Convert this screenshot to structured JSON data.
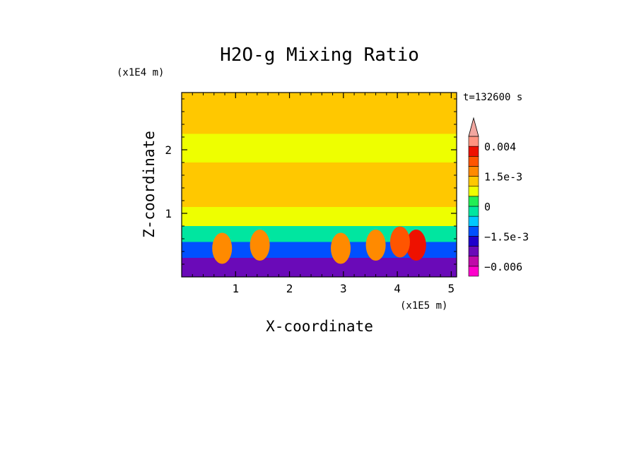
{
  "chart_data": {
    "type": "heatmap",
    "title": "H2O-g Mixing Ratio",
    "xlabel": "X-coordinate",
    "ylabel": "Z-coordinate",
    "x_unit": "(x1E5 m)",
    "y_unit": "(x1E4 m)",
    "time_label": "t=132600 s",
    "xlim": [
      0,
      5.1
    ],
    "ylim": [
      0,
      2.9
    ],
    "x_ticks": [
      1,
      2,
      3,
      4,
      5
    ],
    "y_ticks": [
      1,
      2
    ],
    "x_tick_labels": [
      "1",
      "2",
      "3",
      "4",
      "5"
    ],
    "y_tick_labels": [
      "1",
      "2"
    ],
    "colorbar": {
      "levels": [
        -0.009,
        -0.006,
        -0.003,
        -0.002,
        -0.0015,
        -0.001,
        -0.0005,
        0,
        0.0005,
        0.001,
        0.0015,
        0.002,
        0.003,
        0.004
      ],
      "colors": [
        "#ff00cc",
        "#c00aa8",
        "#6a0ab8",
        "#1e00cc",
        "#0050ff",
        "#00c8ff",
        "#00e6a0",
        "#22ee55",
        "#eeff00",
        "#ffc800",
        "#ff8a00",
        "#ff5500",
        "#ee1100",
        "#ff9480",
        "#f2a7a0"
      ],
      "labels": [
        {
          "value": 0.004,
          "text": "0.004"
        },
        {
          "value": 0.0015,
          "text": "1.5e-3"
        },
        {
          "value": 0,
          "text": "0"
        },
        {
          "value": -0.0015,
          "text": "−1.5e-3"
        },
        {
          "value": -0.006,
          "text": "−0.006"
        }
      ]
    },
    "bands": [
      {
        "z": [
          2.25,
          2.9
        ],
        "value": 0.0006
      },
      {
        "z": [
          2.05,
          2.25
        ],
        "value": 0.0003
      },
      {
        "z": [
          1.8,
          2.05
        ],
        "value": 0.0002
      },
      {
        "z": [
          1.1,
          1.8
        ],
        "value": 0.0007
      },
      {
        "z": [
          0.8,
          1.1
        ],
        "value": 0.0004
      },
      {
        "z": [
          0.55,
          0.8
        ],
        "value": -0.0007
      },
      {
        "z": [
          0.3,
          0.55
        ],
        "value": -0.0018
      },
      {
        "z": [
          0,
          0.3
        ],
        "value": -0.0045
      }
    ],
    "features": [
      {
        "x": 4.35,
        "z": 0.5,
        "value": 0.0022
      },
      {
        "x": 4.05,
        "z": 0.55,
        "value": 0.0016
      },
      {
        "x": 2.95,
        "z": 0.45,
        "value": 0.0012
      },
      {
        "x": 0.75,
        "z": 0.45,
        "value": 0.0011
      },
      {
        "x": 1.45,
        "z": 0.5,
        "value": 0.001
      },
      {
        "x": 3.6,
        "z": 0.5,
        "value": 0.001
      },
      {
        "x": 3.45,
        "z": 2.5,
        "value": 0.0007
      },
      {
        "x": 1.2,
        "z": 2.5,
        "value": 0.0007
      }
    ]
  }
}
